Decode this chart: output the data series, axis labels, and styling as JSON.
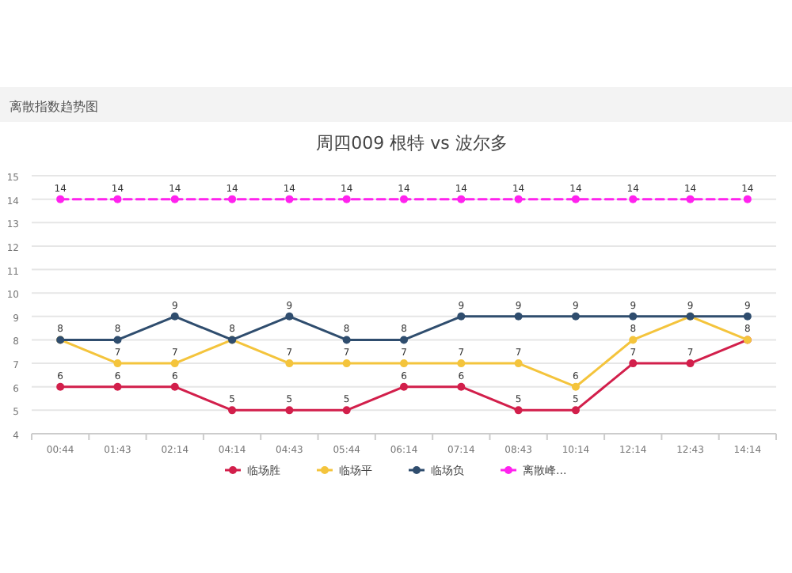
{
  "chart_data": {
    "type": "line",
    "title": "周四009 根特 vs 波尔多",
    "annotations": [
      "离散指数趋势图"
    ],
    "categories": [
      "00:44",
      "01:43",
      "02:14",
      "04:14",
      "04:43",
      "05:44",
      "06:14",
      "07:14",
      "08:43",
      "10:14",
      "12:14",
      "12:43",
      "14:14"
    ],
    "series": [
      {
        "name": "临场胜",
        "color": "#d21f4b",
        "values": [
          6,
          6,
          6,
          5,
          5,
          5,
          6,
          6,
          5,
          5,
          7,
          7,
          8
        ],
        "value_labels": [
          "6",
          "6",
          "6",
          "5",
          "5",
          "5",
          "6",
          "6",
          "5",
          "5",
          "7",
          "7",
          "8"
        ]
      },
      {
        "name": "临场平",
        "color": "#f4c43c",
        "values": [
          8,
          7,
          7,
          8,
          7,
          7,
          7,
          7,
          7,
          6,
          8,
          9,
          8
        ],
        "value_labels": [
          "8",
          "7",
          "7",
          "8",
          "7",
          "7",
          "7",
          "7",
          "7",
          "6",
          "8",
          "9",
          null
        ]
      },
      {
        "name": "临场负",
        "color": "#2f4d6e",
        "values": [
          8,
          8,
          9,
          8,
          9,
          8,
          8,
          9,
          9,
          9,
          9,
          9,
          9
        ],
        "value_labels": [
          null,
          "8",
          "9",
          null,
          "9",
          "8",
          "8",
          "9",
          "9",
          "9",
          "9",
          null,
          "9"
        ]
      },
      {
        "name": "离散峰...",
        "color": "#ff22ee",
        "values": [
          14,
          14,
          14,
          14,
          14,
          14,
          14,
          14,
          14,
          14,
          14,
          14,
          14
        ],
        "line_style": "dashed",
        "value_labels": [
          "14",
          "14",
          "14",
          "14",
          "14",
          "14",
          "14",
          "14",
          "14",
          "14",
          "14",
          "14",
          "14"
        ]
      }
    ],
    "ylim": [
      4,
      15
    ],
    "yticks": [
      4,
      5,
      6,
      7,
      8,
      9,
      10,
      11,
      12,
      13,
      14,
      15
    ],
    "grid": "y",
    "legend": "bottom",
    "marker": "circle"
  }
}
